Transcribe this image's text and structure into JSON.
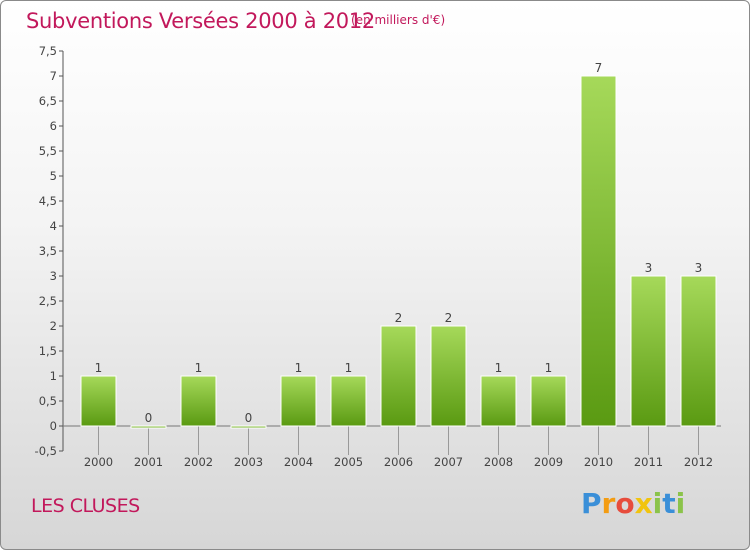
{
  "header": {
    "title": "Subventions Versées 2000 à 2012",
    "unit": "(en milliers d'€)"
  },
  "footer": {
    "commune": "LES CLUSES",
    "logo_text": "Proxiti",
    "logo_colors": [
      "#3a8fd8",
      "#f39c12",
      "#e74c3c",
      "#f1c40f",
      "#8bc34a",
      "#3a8fd8",
      "#8bc34a"
    ]
  },
  "colors": {
    "bar_top": "#a6d95a",
    "bar_bottom": "#5a9a12",
    "title": "#c2185b"
  },
  "chart_data": {
    "type": "bar",
    "categories": [
      "2000",
      "2001",
      "2002",
      "2003",
      "2004",
      "2005",
      "2006",
      "2007",
      "2008",
      "2009",
      "2010",
      "2011",
      "2012"
    ],
    "values": [
      1,
      0,
      1,
      0,
      1,
      1,
      2,
      2,
      1,
      1,
      7,
      3,
      3
    ],
    "value_labels": [
      "1",
      "0",
      "1",
      "0",
      "1",
      "1",
      "2",
      "2",
      "1",
      "1",
      "7",
      "3",
      "3"
    ],
    "title": "Subventions Versées 2000 à 2012",
    "xlabel": "",
    "ylabel": "",
    "ylim": [
      -0.5,
      7.5
    ],
    "yticks": [
      "-0,5",
      "0",
      "0,5",
      "1",
      "1,5",
      "2",
      "2,5",
      "3",
      "3,5",
      "4",
      "4,5",
      "5",
      "5,5",
      "6",
      "6,5",
      "7",
      "7,5"
    ],
    "ytick_values": [
      -0.5,
      0,
      0.5,
      1,
      1.5,
      2,
      2.5,
      3,
      3.5,
      4,
      4.5,
      5,
      5.5,
      6,
      6.5,
      7,
      7.5
    ],
    "grid": false
  }
}
